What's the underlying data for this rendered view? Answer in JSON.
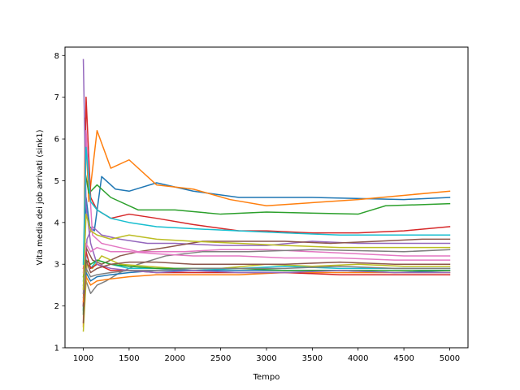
{
  "chart_data": {
    "type": "line",
    "title": "",
    "xlabel": "Tempo",
    "ylabel": "Vita media dei job arrivati (sink1)",
    "xlim": [
      800,
      5200
    ],
    "ylim": [
      1,
      8.2
    ],
    "xticks": [
      1000,
      1500,
      2000,
      2500,
      3000,
      3500,
      4000,
      4500,
      5000
    ],
    "yticks": [
      1,
      2,
      3,
      4,
      5,
      6,
      7,
      8
    ],
    "grid": false,
    "legend": "none",
    "colors": [
      "#1f77b4",
      "#ff7f0e",
      "#2ca02c",
      "#d62728",
      "#9467bd",
      "#8c564b",
      "#e377c2",
      "#7f7f7f",
      "#bcbd22",
      "#17becf"
    ],
    "series": [
      {
        "x": [
          1000,
          1030,
          1070,
          1120,
          1200,
          1350,
          1500,
          1800,
          2200,
          2700,
          3500,
          4500,
          5000
        ],
        "values": [
          1.9,
          4.6,
          3.9,
          3.8,
          5.1,
          4.8,
          4.75,
          4.95,
          4.75,
          4.6,
          4.6,
          4.55,
          4.6
        ]
      },
      {
        "x": [
          1000,
          1020,
          1060,
          1150,
          1300,
          1500,
          1800,
          2200,
          2600,
          3000,
          4000,
          5000
        ],
        "values": [
          1.5,
          6.5,
          4.5,
          6.2,
          5.3,
          5.5,
          4.9,
          4.8,
          4.55,
          4.4,
          4.55,
          4.75
        ]
      },
      {
        "x": [
          1000,
          1020,
          1060,
          1150,
          1300,
          1600,
          2000,
          2500,
          3000,
          4000,
          4300,
          5000
        ],
        "values": [
          1.8,
          5.2,
          4.7,
          4.9,
          4.6,
          4.3,
          4.3,
          4.2,
          4.25,
          4.2,
          4.4,
          4.45
        ]
      },
      {
        "x": [
          1000,
          1030,
          1080,
          1150,
          1300,
          1500,
          1800,
          2200,
          2700,
          3000,
          3500,
          4000,
          4500,
          5000
        ],
        "values": [
          2.0,
          7.0,
          4.6,
          4.3,
          4.1,
          4.2,
          4.1,
          3.95,
          3.8,
          3.8,
          3.75,
          3.75,
          3.8,
          3.9
        ]
      },
      {
        "x": [
          1000,
          1040,
          1100,
          1200,
          1400,
          1700,
          2000,
          2500,
          3000,
          3500,
          4000,
          4500,
          5000
        ],
        "values": [
          2.0,
          3.6,
          3.9,
          3.7,
          3.6,
          3.5,
          3.5,
          3.45,
          3.45,
          3.55,
          3.5,
          3.5,
          3.5
        ]
      },
      {
        "x": [
          1000,
          1030,
          1100,
          1200,
          1400,
          1600,
          1900,
          2300,
          2700,
          3200,
          3700,
          4200,
          4700,
          5000
        ],
        "values": [
          2.0,
          3.4,
          3.1,
          3.0,
          3.2,
          3.3,
          3.4,
          3.55,
          3.55,
          3.55,
          3.5,
          3.55,
          3.6,
          3.6
        ]
      },
      {
        "x": [
          1000,
          1030,
          1100,
          1200,
          1400,
          1600,
          1800,
          2100,
          2500,
          3000,
          3500,
          4000,
          4500,
          5000
        ],
        "values": [
          2.3,
          6.2,
          3.7,
          3.5,
          3.4,
          3.3,
          3.3,
          3.3,
          3.35,
          3.35,
          3.3,
          3.25,
          3.2,
          3.2
        ]
      },
      {
        "x": [
          1000,
          1030,
          1080,
          1150,
          1250,
          1400,
          1600,
          1900,
          2300,
          2800,
          3500,
          4500,
          5000
        ],
        "values": [
          2.2,
          2.6,
          2.3,
          2.5,
          2.6,
          2.8,
          3.0,
          3.2,
          3.3,
          3.3,
          3.35,
          3.3,
          3.35
        ]
      },
      {
        "x": [
          1000,
          1040,
          1100,
          1200,
          1400,
          1700,
          2000,
          2500,
          3000,
          3500,
          4000,
          4500,
          5000
        ],
        "values": [
          1.4,
          3.0,
          2.9,
          3.2,
          3.0,
          2.95,
          2.9,
          2.9,
          3.0,
          2.95,
          3.0,
          2.95,
          2.95
        ]
      },
      {
        "x": [
          1000,
          1030,
          1080,
          1150,
          1300,
          1500,
          1800,
          2200,
          2700,
          3200,
          3800,
          4400,
          5000
        ],
        "values": [
          2.6,
          3.3,
          2.9,
          3.1,
          3.0,
          2.9,
          2.9,
          2.85,
          2.9,
          2.95,
          2.9,
          2.9,
          2.9
        ]
      },
      {
        "x": [
          1000,
          1030,
          1080,
          1150,
          1300,
          1500,
          1800,
          2200,
          2700,
          3200,
          3800,
          4400,
          5000
        ],
        "values": [
          2.5,
          2.8,
          2.6,
          2.7,
          2.75,
          2.8,
          2.85,
          2.85,
          2.85,
          2.85,
          2.85,
          2.8,
          2.85
        ]
      },
      {
        "x": [
          1000,
          1030,
          1080,
          1150,
          1300,
          1500,
          1800,
          2200,
          2700,
          3200,
          3800,
          4400,
          5000
        ],
        "values": [
          2.1,
          2.7,
          2.5,
          2.6,
          2.65,
          2.7,
          2.75,
          2.75,
          2.75,
          2.8,
          2.8,
          2.8,
          2.8
        ]
      },
      {
        "x": [
          1000,
          1030,
          1080,
          1150,
          1300,
          1500,
          1800,
          2200,
          2700,
          3200,
          3800,
          4400,
          5000
        ],
        "values": [
          2.7,
          3.1,
          3.0,
          3.1,
          3.0,
          2.95,
          2.9,
          2.9,
          2.9,
          2.85,
          2.85,
          2.85,
          2.85
        ]
      },
      {
        "x": [
          1000,
          1030,
          1080,
          1150,
          1300,
          1500,
          1800,
          2200,
          2700,
          3200,
          3800,
          4400,
          5000
        ],
        "values": [
          2.9,
          3.3,
          2.9,
          3.0,
          2.85,
          2.85,
          2.8,
          2.8,
          2.8,
          2.8,
          2.75,
          2.75,
          2.75
        ]
      },
      {
        "x": [
          1000,
          1030,
          1080,
          1150,
          1300,
          1500,
          1800,
          2200,
          2700,
          3200,
          3800,
          4400,
          5000
        ],
        "values": [
          7.9,
          4.4,
          3.5,
          3.0,
          2.9,
          2.85,
          2.8,
          2.85,
          2.8,
          2.8,
          2.85,
          2.8,
          2.8
        ]
      },
      {
        "x": [
          1000,
          1030,
          1080,
          1150,
          1300,
          1500,
          1800,
          2200,
          2700,
          3200,
          3800,
          4400,
          5000
        ],
        "values": [
          1.6,
          3.1,
          2.8,
          2.9,
          3.0,
          3.05,
          3.05,
          3.0,
          3.0,
          3.0,
          3.05,
          3.0,
          3.0
        ]
      },
      {
        "x": [
          1000,
          1030,
          1080,
          1150,
          1300,
          1500,
          1800,
          2200,
          2700,
          3200,
          3800,
          4400,
          5000
        ],
        "values": [
          2.8,
          3.5,
          3.3,
          3.4,
          3.3,
          3.3,
          3.25,
          3.2,
          3.2,
          3.15,
          3.15,
          3.1,
          3.1
        ]
      },
      {
        "x": [
          1000,
          1030,
          1080,
          1150,
          1300,
          1500,
          1800,
          2200,
          2700,
          3200,
          3800,
          4400,
          5000
        ],
        "values": [
          2.3,
          2.9,
          2.7,
          2.75,
          2.8,
          2.85,
          2.85,
          2.9,
          2.9,
          2.9,
          2.95,
          2.9,
          2.9
        ]
      },
      {
        "x": [
          1000,
          1030,
          1080,
          1150,
          1300,
          1500,
          1800,
          2200,
          2700,
          3200,
          3800,
          4400,
          5000
        ],
        "values": [
          2.4,
          4.2,
          3.8,
          3.7,
          3.6,
          3.7,
          3.6,
          3.55,
          3.5,
          3.45,
          3.4,
          3.4,
          3.4
        ]
      },
      {
        "x": [
          1000,
          1030,
          1080,
          1150,
          1300,
          1500,
          1800,
          2200,
          2700,
          3200,
          3800,
          4400,
          5000
        ],
        "values": [
          3.0,
          5.8,
          4.5,
          4.3,
          4.1,
          4.0,
          3.9,
          3.85,
          3.8,
          3.75,
          3.7,
          3.7,
          3.7
        ]
      }
    ]
  }
}
